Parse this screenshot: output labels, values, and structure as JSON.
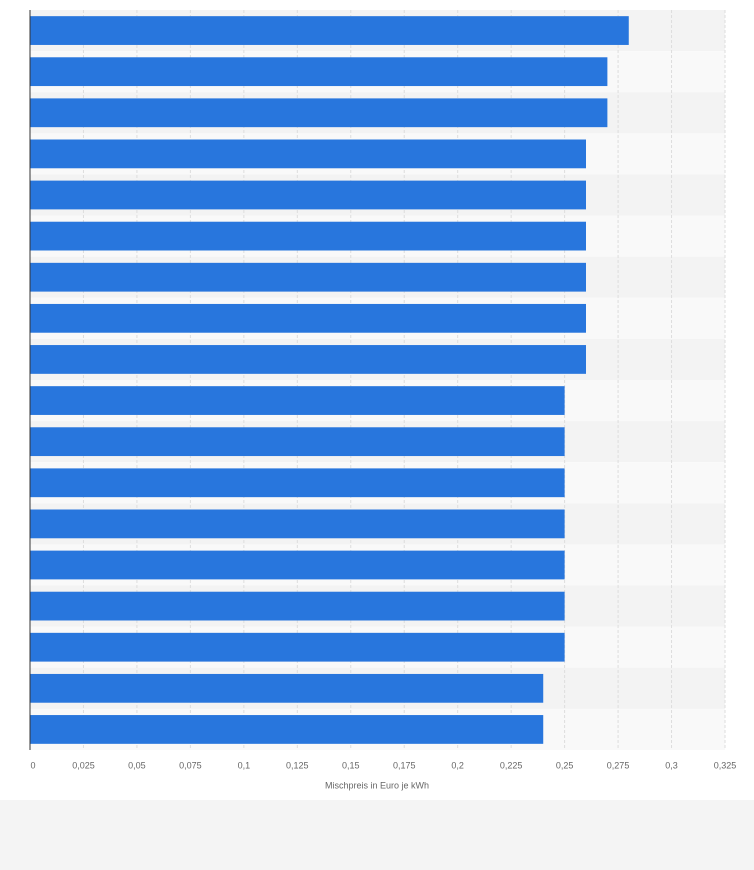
{
  "chart_data": {
    "type": "bar",
    "orientation": "horizontal",
    "x_label": "Mischpreis in Euro je kWh",
    "categories": [
      null,
      null,
      null,
      null,
      null,
      null,
      null,
      null,
      null,
      null,
      null,
      null,
      null,
      null,
      null,
      null,
      null,
      null
    ],
    "values": [
      0.28,
      0.27,
      0.27,
      0.26,
      0.26,
      0.26,
      0.26,
      0.26,
      0.26,
      0.25,
      0.25,
      0.25,
      0.25,
      0.25,
      0.25,
      0.25,
      0.24,
      0.24
    ],
    "color": "#2876dd",
    "xlim": [
      0,
      0.325
    ],
    "xticks": [
      0,
      {
        "value": 0.025,
        "label": "0,025"
      },
      {
        "value": 0.05,
        "label": "0,05"
      },
      {
        "value": 0.075,
        "label": "0,075"
      },
      {
        "value": 0.1,
        "label": "0,1"
      },
      {
        "value": 0.125,
        "label": "0,125"
      },
      {
        "value": 0.15,
        "label": "0,15"
      },
      {
        "value": 0.175,
        "label": "0,175"
      },
      {
        "value": 0.2,
        "label": "0,2"
      },
      {
        "value": 0.225,
        "label": "0,225"
      },
      {
        "value": 0.25,
        "label": "0,25"
      },
      {
        "value": 0.275,
        "label": "0,275"
      },
      {
        "value": 0.3,
        "label": "0,3"
      },
      {
        "value": 0.325,
        "label": "0,325"
      }
    ],
    "grid": true
  }
}
